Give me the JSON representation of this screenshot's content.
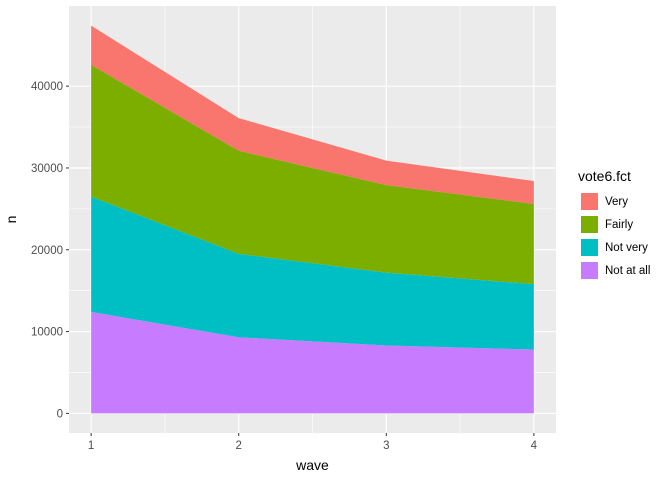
{
  "chart_data": {
    "type": "area",
    "stacked": true,
    "title": "",
    "xlabel": "wave",
    "ylabel": "n",
    "x": [
      1,
      2,
      3,
      4
    ],
    "xlim": [
      0.85,
      4.15
    ],
    "ylim": [
      -2400,
      49800
    ],
    "x_ticks": [
      1,
      2,
      3,
      4
    ],
    "y_ticks": [
      0,
      10000,
      20000,
      30000,
      40000
    ],
    "grid": true,
    "background": "#EBEBEB",
    "legend": {
      "title": "vote6.fct",
      "position": "right"
    },
    "series": [
      {
        "name": "Very",
        "color": "#F8766D",
        "values": [
          4800,
          4000,
          3000,
          2800
        ]
      },
      {
        "name": "Fairly",
        "color": "#7CAE00",
        "values": [
          16100,
          12600,
          10700,
          9800
        ]
      },
      {
        "name": "Not very",
        "color": "#00BFC4",
        "values": [
          14100,
          10200,
          8900,
          8000
        ]
      },
      {
        "name": "Not at all",
        "color": "#C77CFF",
        "values": [
          12400,
          9300,
          8300,
          7800
        ]
      }
    ]
  }
}
